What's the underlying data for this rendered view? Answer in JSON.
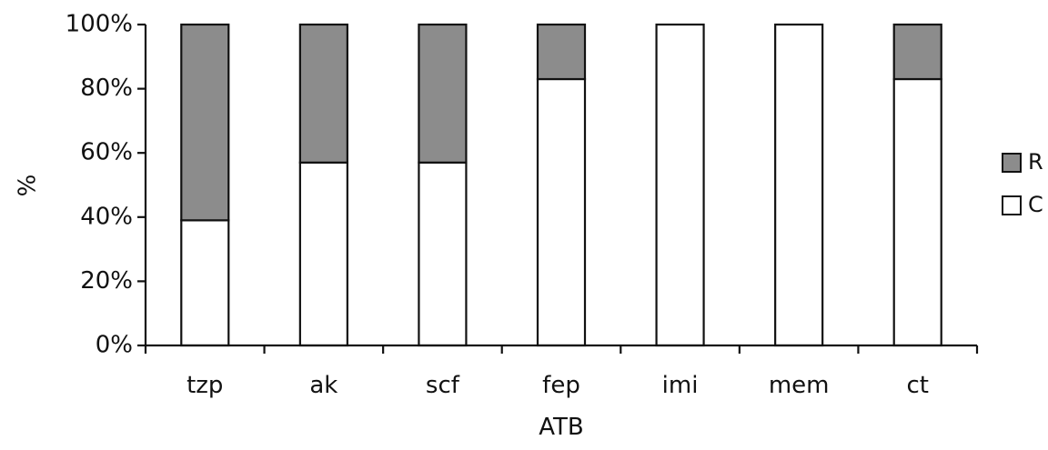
{
  "chart_data": {
    "type": "bar",
    "stacked": true,
    "categories": [
      "tzp",
      "ak",
      "scf",
      "fep",
      "imi",
      "mem",
      "ct"
    ],
    "series": [
      {
        "name": "C",
        "values": [
          39,
          57,
          57,
          83,
          100,
          100,
          83
        ],
        "color": "#ffffff"
      },
      {
        "name": "R",
        "values": [
          61,
          43,
          43,
          17,
          0,
          0,
          17
        ],
        "color": "#8c8c8c"
      }
    ],
    "title": "",
    "xlabel": "ATB",
    "ylabel": "%",
    "ylim": [
      0,
      100
    ],
    "yticks": [
      "0%",
      "20%",
      "40%",
      "60%",
      "80%",
      "100%"
    ],
    "legend_position": "right",
    "legend_order": [
      "R",
      "C"
    ],
    "grid": false
  }
}
